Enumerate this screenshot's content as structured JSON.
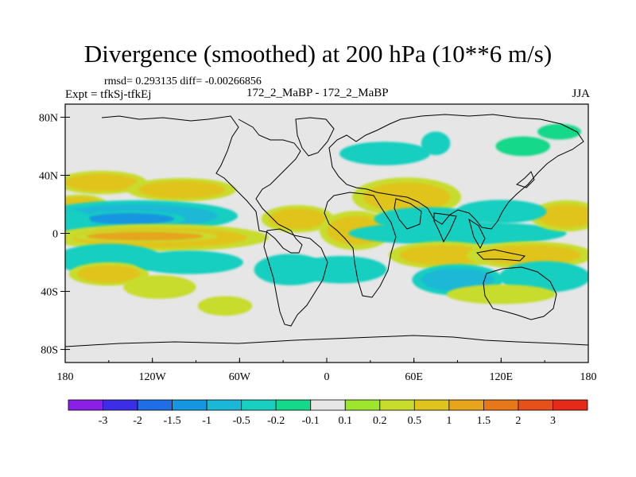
{
  "chart_data": {
    "type": "heatmap",
    "title": "Divergence (smoothed) at 200 hPa (10**6 m/s)",
    "stats_text": "rmsd= 0.293135 diff= -0.00266856",
    "experiment_text": "Expt = tfkSj-tfkEj",
    "case_text": "172_2_MaBP - 172_2_MaBP",
    "season": "JJA",
    "x_range": [
      -180,
      180
    ],
    "y_range": [
      -90,
      90
    ],
    "x_ticks": [
      {
        "value": -180,
        "label": "180"
      },
      {
        "value": -120,
        "label": "120W"
      },
      {
        "value": -60,
        "label": "60W"
      },
      {
        "value": 0,
        "label": "0"
      },
      {
        "value": 60,
        "label": "60E"
      },
      {
        "value": 120,
        "label": "120E"
      },
      {
        "value": 180,
        "label": "180"
      }
    ],
    "y_ticks": [
      {
        "value": 80,
        "label": "80N"
      },
      {
        "value": 40,
        "label": "40N"
      },
      {
        "value": 0,
        "label": "0"
      },
      {
        "value": -40,
        "label": "40S"
      },
      {
        "value": -80,
        "label": "80S"
      }
    ],
    "colorbar": {
      "colors": [
        "#8a1fe6",
        "#3c2ee6",
        "#1f6ee6",
        "#1596e0",
        "#1ab8d6",
        "#19cfc0",
        "#14d88a",
        "#e6e6e6",
        "#9ee62e",
        "#c8dc2d",
        "#e0c41e",
        "#e6a51a",
        "#e6781a",
        "#e6501a",
        "#e62a1a"
      ],
      "labels": [
        "-3",
        "-2",
        "-1.5",
        "-1",
        "-0.5",
        "-0.2",
        "-0.1",
        "0.1",
        "0.2",
        "0.5",
        "1",
        "1.5",
        "2",
        "3"
      ]
    },
    "field": {
      "background_level": "-0.1 to 0.1",
      "features": [
        {
          "lon": -155,
          "lat": 35,
          "rx": 25,
          "ry": 6,
          "value": 0.6
        },
        {
          "lon": -100,
          "lat": 30,
          "rx": 30,
          "ry": 6,
          "value": 0.5
        },
        {
          "lon": -170,
          "lat": 20,
          "rx": 15,
          "ry": 5,
          "value": 0.5
        },
        {
          "lon": -130,
          "lat": 12,
          "rx": 55,
          "ry": 8,
          "value": -0.6
        },
        {
          "lon": -135,
          "lat": 10,
          "rx": 30,
          "ry": 4,
          "value": -1.1
        },
        {
          "lon": -175,
          "lat": 8,
          "rx": 10,
          "ry": 6,
          "value": -0.5
        },
        {
          "lon": -115,
          "lat": -3,
          "rx": 60,
          "ry": 7,
          "value": 0.8
        },
        {
          "lon": -125,
          "lat": -2,
          "rx": 40,
          "ry": 3,
          "value": 1.2
        },
        {
          "lon": -150,
          "lat": -18,
          "rx": 30,
          "ry": 8,
          "value": -0.5
        },
        {
          "lon": -150,
          "lat": -28,
          "rx": 22,
          "ry": 6,
          "value": 0.6
        },
        {
          "lon": -95,
          "lat": -20,
          "rx": 30,
          "ry": 6,
          "value": -0.3
        },
        {
          "lon": -115,
          "lat": -37,
          "rx": 20,
          "ry": 6,
          "value": 0.4
        },
        {
          "lon": -20,
          "lat": 10,
          "rx": 20,
          "ry": 7,
          "value": 0.6
        },
        {
          "lon": 20,
          "lat": 2,
          "rx": 20,
          "ry": 10,
          "value": 0.6
        },
        {
          "lon": -25,
          "lat": -25,
          "rx": 20,
          "ry": 8,
          "value": -0.5
        },
        {
          "lon": 10,
          "lat": -25,
          "rx": 25,
          "ry": 7,
          "value": -0.4
        },
        {
          "lon": 55,
          "lat": 25,
          "rx": 30,
          "ry": 10,
          "value": 0.5
        },
        {
          "lon": 70,
          "lat": 10,
          "rx": 30,
          "ry": 6,
          "value": -0.4
        },
        {
          "lon": 90,
          "lat": 0,
          "rx": 60,
          "ry": 6,
          "value": -0.5
        },
        {
          "lon": 80,
          "lat": -15,
          "rx": 30,
          "ry": 7,
          "value": 0.8
        },
        {
          "lon": 140,
          "lat": -15,
          "rx": 35,
          "ry": 7,
          "value": 0.7
        },
        {
          "lon": 165,
          "lat": 12,
          "rx": 20,
          "ry": 8,
          "value": 0.8
        },
        {
          "lon": 120,
          "lat": 15,
          "rx": 25,
          "ry": 6,
          "value": -0.3
        },
        {
          "lon": 90,
          "lat": -32,
          "rx": 25,
          "ry": 8,
          "value": -0.6
        },
        {
          "lon": 150,
          "lat": -30,
          "rx": 25,
          "ry": 8,
          "value": -0.4
        },
        {
          "lon": 120,
          "lat": -42,
          "rx": 30,
          "ry": 5,
          "value": 0.4
        },
        {
          "lon": 40,
          "lat": 55,
          "rx": 25,
          "ry": 6,
          "value": -0.3
        },
        {
          "lon": 75,
          "lat": 62,
          "rx": 8,
          "ry": 6,
          "value": -0.5
        },
        {
          "lon": 135,
          "lat": 60,
          "rx": 15,
          "ry": 5,
          "value": -0.2
        },
        {
          "lon": 160,
          "lat": 70,
          "rx": 12,
          "ry": 4,
          "value": -0.2
        },
        {
          "lon": -70,
          "lat": -50,
          "rx": 15,
          "ry": 5,
          "value": 0.3
        }
      ]
    }
  }
}
